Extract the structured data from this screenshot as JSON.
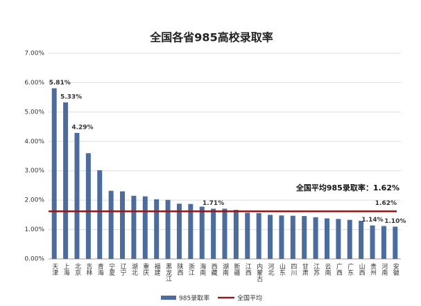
{
  "chart_data": {
    "type": "bar",
    "title": "全国各省985高校录取率",
    "categories": [
      "天津",
      "上海",
      "北京",
      "吉林",
      "青海",
      "宁夏",
      "辽宁",
      "湖北",
      "重庆",
      "福建",
      "黑龙江",
      "陕西",
      "浙江",
      "海南",
      "西藏",
      "湖南",
      "新疆",
      "江西",
      "内蒙古",
      "河北",
      "山东",
      "四川",
      "甘肃",
      "江苏",
      "云南",
      "广西",
      "广东",
      "山西",
      "贵州",
      "河南",
      "安徽"
    ],
    "series": [
      {
        "name": "985录取率",
        "color": "#4a6c9e",
        "values": [
          5.81,
          5.33,
          4.29,
          3.6,
          3.02,
          2.32,
          2.3,
          2.15,
          2.13,
          2.03,
          2.01,
          1.88,
          1.87,
          1.78,
          1.71,
          1.71,
          1.67,
          1.57,
          1.56,
          1.5,
          1.48,
          1.47,
          1.46,
          1.42,
          1.38,
          1.36,
          1.33,
          1.3,
          1.14,
          1.12,
          1.1
        ],
        "value_labels": [
          "5.81%",
          "5.33%",
          "4.29%",
          null,
          null,
          null,
          null,
          null,
          null,
          null,
          null,
          null,
          null,
          null,
          "1.71%",
          null,
          null,
          null,
          null,
          null,
          null,
          null,
          null,
          null,
          null,
          null,
          null,
          null,
          "1.14%",
          null,
          "1.10%"
        ]
      }
    ],
    "reference_line": {
      "name": "全国平均",
      "value": 1.62,
      "label": "1.62%",
      "annotation": "全国平均985录取率：1.62%",
      "color": "#8b1a1a"
    },
    "ylim": [
      0,
      7
    ],
    "yticks": [
      {
        "value": 0,
        "label": "0.00%"
      },
      {
        "value": 1,
        "label": "1.00%"
      },
      {
        "value": 2,
        "label": "2.00%"
      },
      {
        "value": 3,
        "label": "3.00%"
      },
      {
        "value": 4,
        "label": "4.00%"
      },
      {
        "value": 5,
        "label": "5.00%"
      },
      {
        "value": 6,
        "label": "6.00%"
      },
      {
        "value": 7,
        "label": "7.00%"
      }
    ],
    "grid": true
  }
}
